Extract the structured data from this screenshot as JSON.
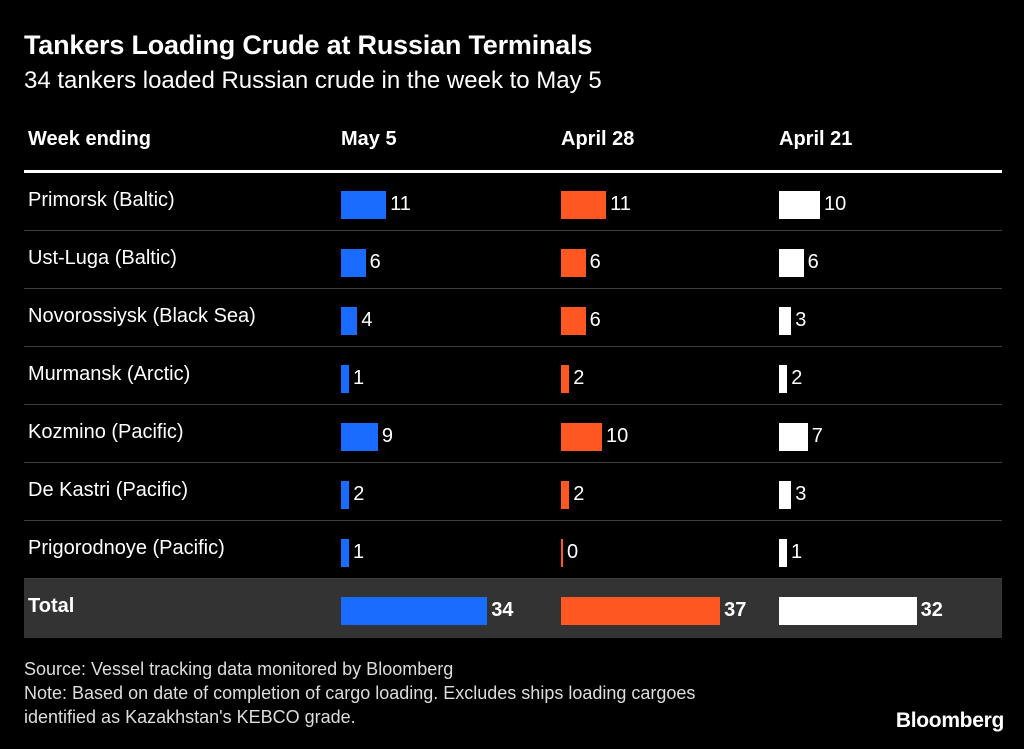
{
  "title": "Tankers Loading Crude at Russian Terminals",
  "subtitle": "34 tankers loaded Russian crude in the week to May 5",
  "brand": "Bloomberg",
  "footer": {
    "source": "Source: Vessel tracking data monitored by Bloomberg",
    "note_line1": "Note: Based on date of completion of cargo loading. Excludes ships loading cargoes",
    "note_line2": "identified as Kazakhstan's KEBCO grade."
  },
  "chart_data": {
    "type": "table",
    "title": "Tankers Loading Crude at Russian Terminals",
    "subtitle": "34 tankers loaded Russian crude in the week to May 5",
    "row_header": "Week ending",
    "columns": [
      "May 5",
      "April 28",
      "April 21"
    ],
    "colors": [
      "#1a6bff",
      "#ff5722",
      "#ffffff"
    ],
    "rows": [
      {
        "label": "Primorsk (Baltic)",
        "values": [
          11,
          11,
          10
        ]
      },
      {
        "label": "Ust-Luga (Baltic)",
        "values": [
          6,
          6,
          6
        ]
      },
      {
        "label": "Novorossiysk (Black Sea)",
        "values": [
          4,
          6,
          3
        ]
      },
      {
        "label": "Murmansk (Arctic)",
        "values": [
          1,
          2,
          2
        ]
      },
      {
        "label": "Kozmino (Pacific)",
        "values": [
          9,
          10,
          7
        ]
      },
      {
        "label": "De Kastri (Pacific)",
        "values": [
          2,
          2,
          3
        ]
      },
      {
        "label": "Prigorodnoye (Pacific)",
        "values": [
          1,
          0,
          1
        ]
      }
    ],
    "total": {
      "label": "Total",
      "values": [
        34,
        37,
        32
      ]
    }
  }
}
